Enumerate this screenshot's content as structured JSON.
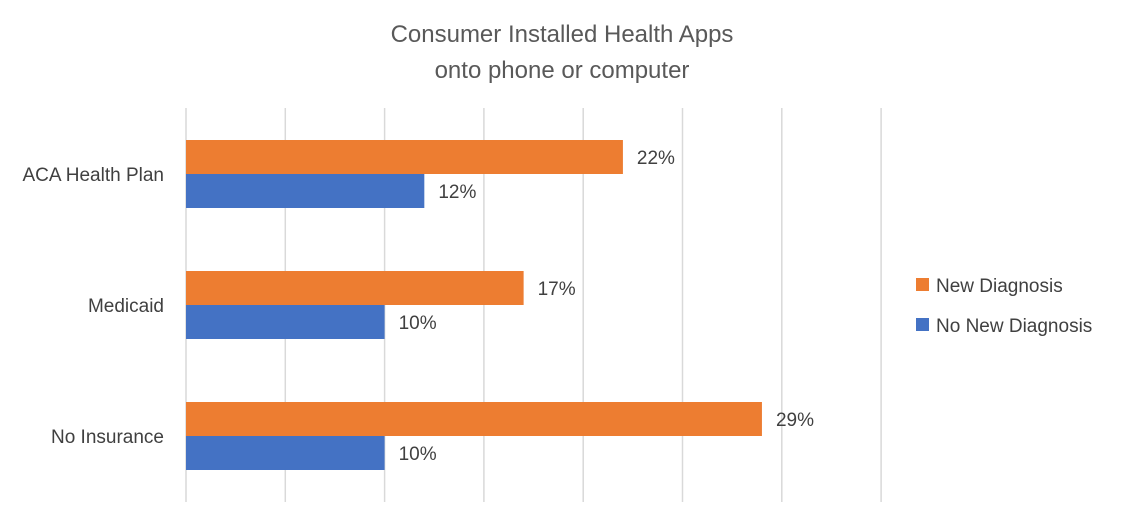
{
  "chart_data": {
    "type": "bar",
    "orientation": "horizontal",
    "title_lines": [
      "Consumer Installed Health Apps",
      "onto phone or computer"
    ],
    "categories": [
      "ACA Health Plan",
      "Medicaid",
      "No Insurance"
    ],
    "series": [
      {
        "name": "New Diagnosis",
        "values": [
          22,
          17,
          29
        ],
        "color": "#ed7d31"
      },
      {
        "name": "No New Diagnosis",
        "values": [
          12,
          10,
          10
        ],
        "color": "#4472c4"
      }
    ],
    "value_suffix": "%",
    "xlim": [
      0,
      35
    ],
    "grid_step": 5,
    "grid": true,
    "legend_position": "right"
  }
}
